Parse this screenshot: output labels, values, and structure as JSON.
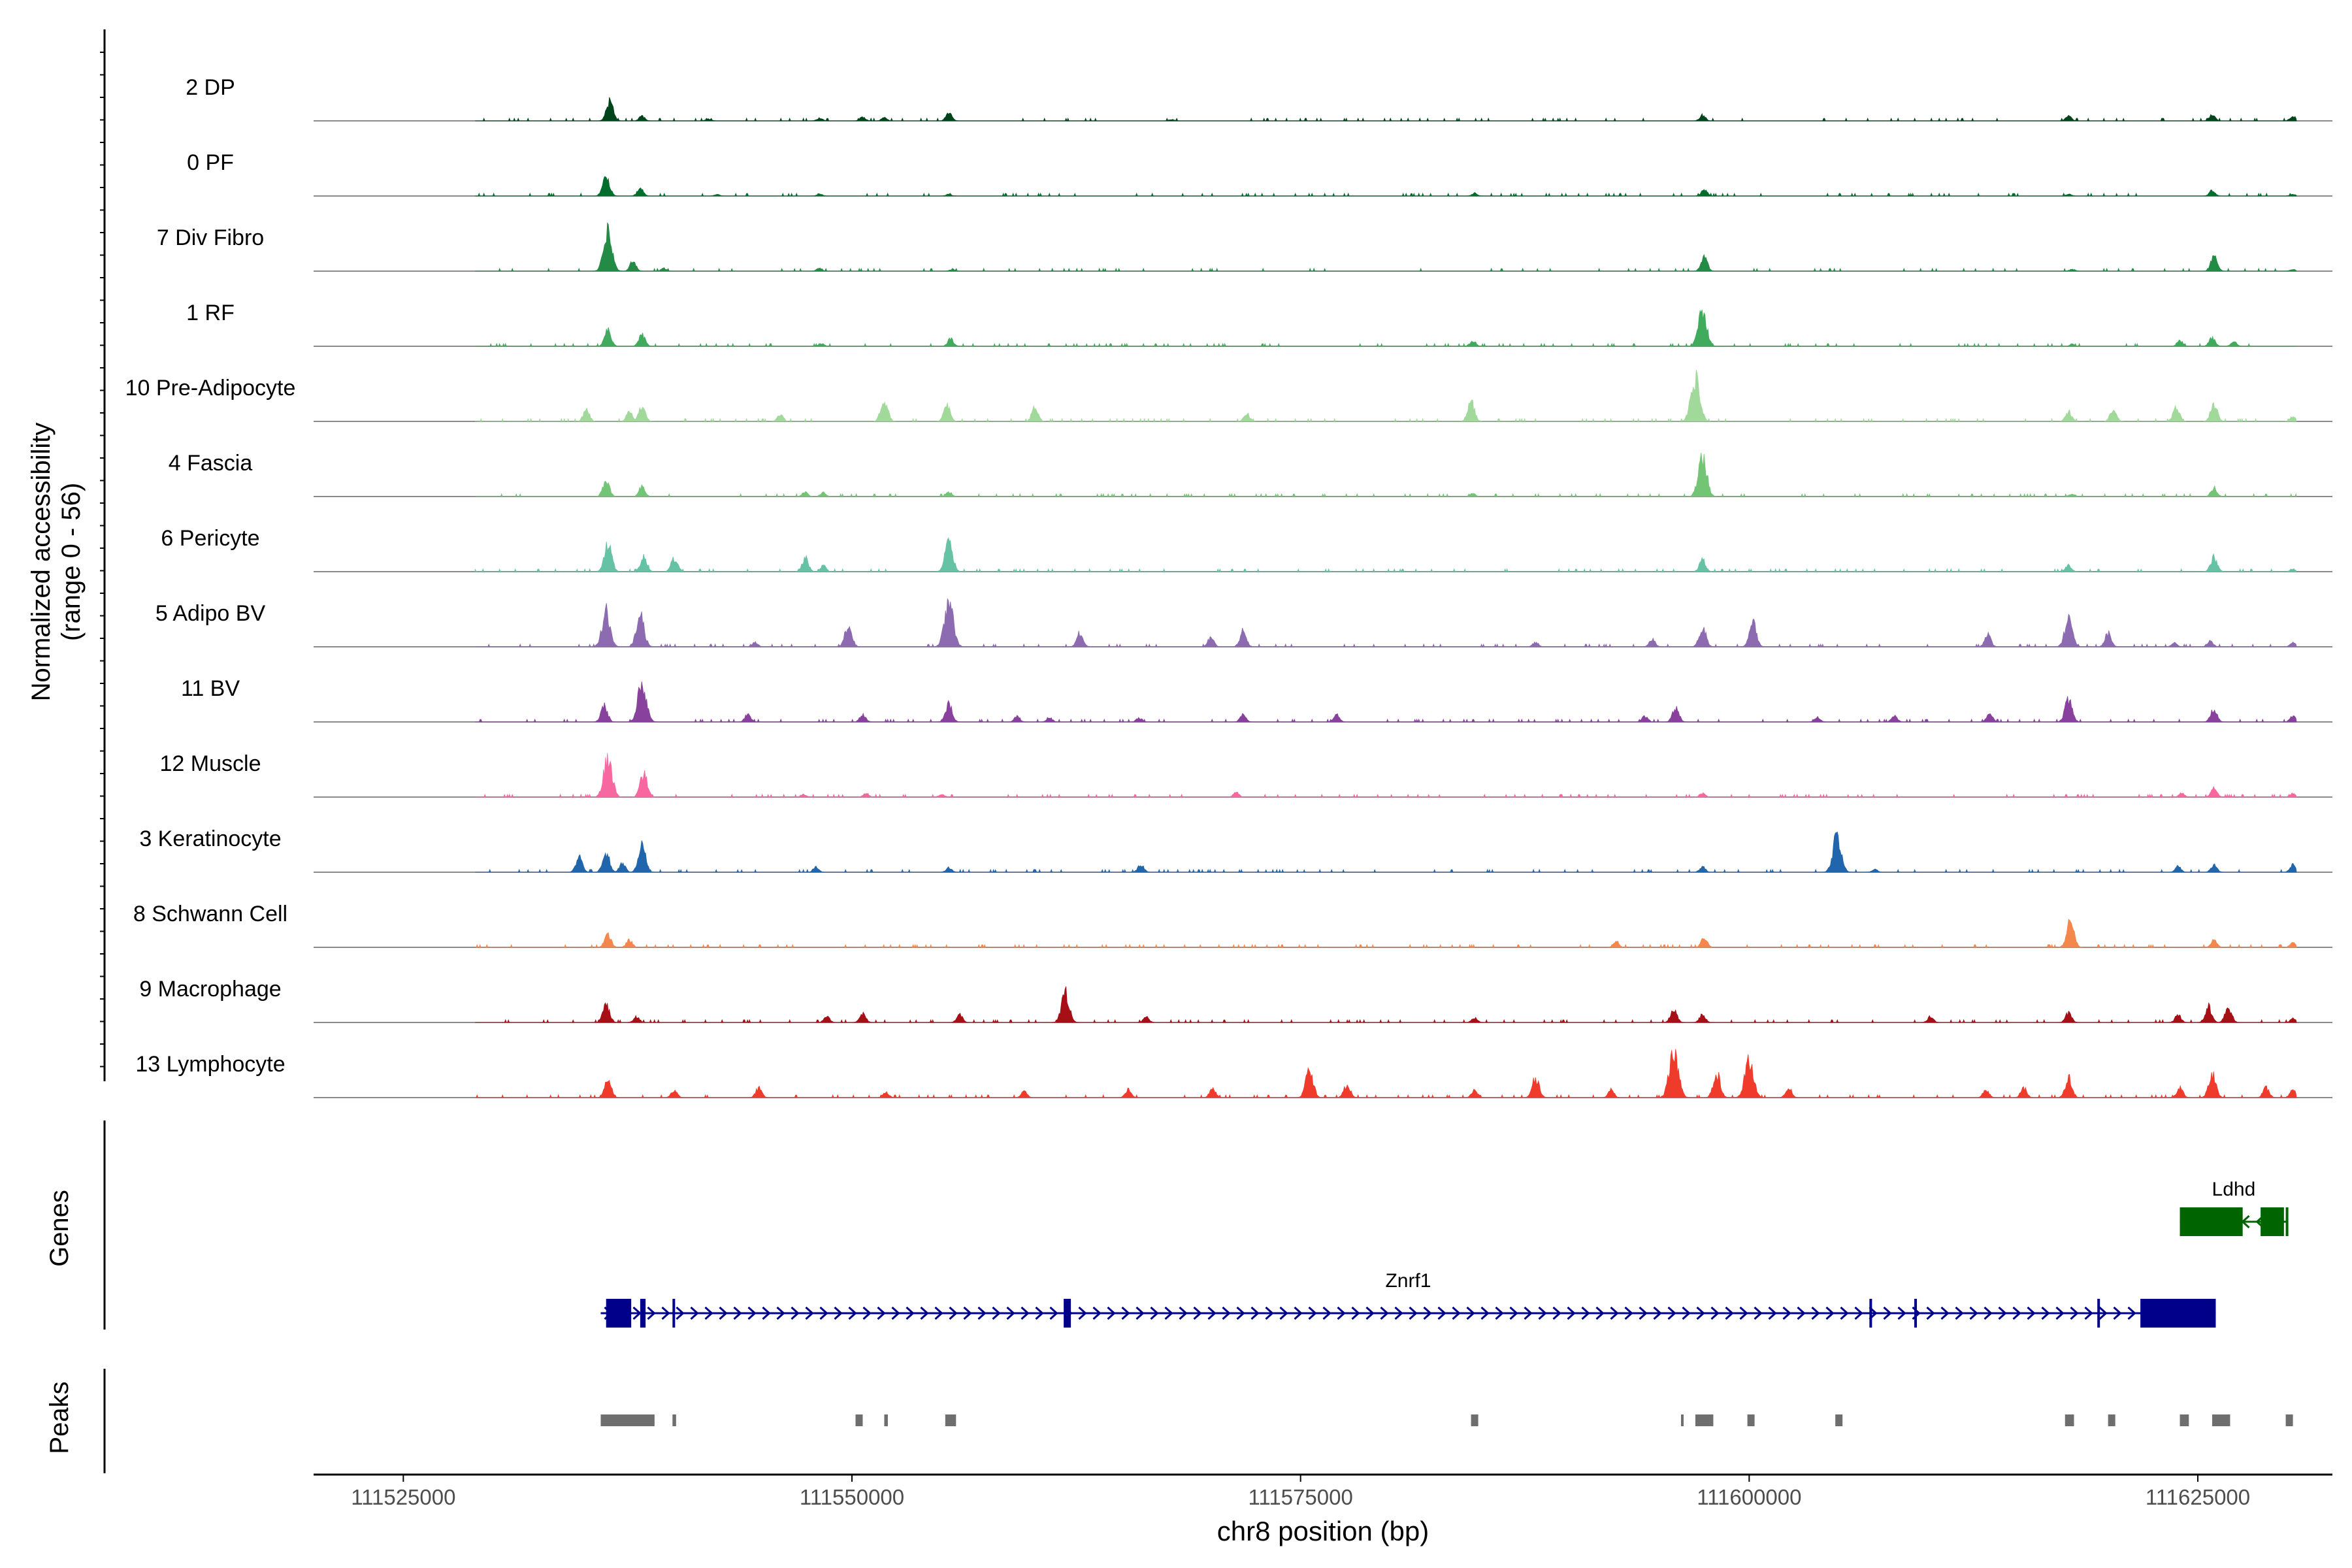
{
  "chart_data": {
    "type": "area",
    "title": "",
    "region": "chr8",
    "xlabel": "chr8 position (bp)",
    "xlim": [
      111520000,
      111632500
    ],
    "x_ticks": [
      111525000,
      111550000,
      111575000,
      111600000,
      111625000
    ],
    "x_tick_labels": [
      "111525000",
      "111550000",
      "111575000",
      "111600000",
      "111625000"
    ],
    "coverage_panel": {
      "ylabel": "Normalized accessibility",
      "ylabel_range": "(range 0 - 56)",
      "ylim": [
        0,
        56
      ],
      "tracks": [
        {
          "name": "2 DP",
          "color": "#00441b",
          "peaks": [
            [
              111536500,
              20
            ],
            [
              111538300,
              5
            ],
            [
              111542000,
              2
            ],
            [
              111548200,
              3
            ],
            [
              111550600,
              4
            ],
            [
              111551800,
              3
            ],
            [
              111555400,
              8
            ],
            [
              111567800,
              1.5
            ],
            [
              111597400,
              6
            ],
            [
              111617800,
              5
            ],
            [
              111625800,
              6
            ],
            [
              111630300,
              5
            ]
          ]
        },
        {
          "name": "0 PF",
          "color": "#006d2c",
          "peaks": [
            [
              111536300,
              20
            ],
            [
              111538200,
              8
            ],
            [
              111542500,
              1.5
            ],
            [
              111548200,
              2
            ],
            [
              111555400,
              2
            ],
            [
              111584700,
              3
            ],
            [
              111597500,
              7
            ],
            [
              111617800,
              2
            ],
            [
              111625800,
              6
            ],
            [
              111630300,
              2
            ]
          ]
        },
        {
          "name": "7 Div Fibro",
          "color": "#238b45",
          "peaks": [
            [
              111536400,
              40
            ],
            [
              111537800,
              10
            ],
            [
              111539500,
              3
            ],
            [
              111548200,
              3
            ],
            [
              111555600,
              2
            ],
            [
              111597500,
              14
            ],
            [
              111618000,
              2
            ],
            [
              111625900,
              16
            ],
            [
              111630300,
              2
            ]
          ]
        },
        {
          "name": "1 RF",
          "color": "#41ab5d",
          "peaks": [
            [
              111536400,
              16
            ],
            [
              111538300,
              12
            ],
            [
              111548300,
              3
            ],
            [
              111555500,
              8
            ],
            [
              111584600,
              6
            ],
            [
              111597400,
              38
            ],
            [
              111618000,
              2
            ],
            [
              111624000,
              6
            ],
            [
              111625800,
              9
            ],
            [
              111627000,
              5
            ]
          ]
        },
        {
          "name": "10 Pre-Adipocyte",
          "color": "#a1d99b",
          "peaks": [
            [
              111535200,
              12
            ],
            [
              111537600,
              10
            ],
            [
              111538300,
              16
            ],
            [
              111546000,
              8
            ],
            [
              111551800,
              22
            ],
            [
              111555300,
              16
            ],
            [
              111560200,
              14
            ],
            [
              111572000,
              8
            ],
            [
              111584500,
              20
            ],
            [
              111597000,
              45
            ],
            [
              111617800,
              10
            ],
            [
              111620300,
              13
            ],
            [
              111623800,
              14
            ],
            [
              111625900,
              18
            ],
            [
              111630300,
              5
            ]
          ]
        },
        {
          "name": "4 Fascia",
          "color": "#74c476",
          "peaks": [
            [
              111536300,
              16
            ],
            [
              111538300,
              10
            ],
            [
              111547400,
              5
            ],
            [
              111548400,
              4
            ],
            [
              111555400,
              5
            ],
            [
              111584600,
              3
            ],
            [
              111597400,
              40
            ],
            [
              111618000,
              3
            ],
            [
              111625900,
              9
            ]
          ]
        },
        {
          "name": "6 Pericyte",
          "color": "#66c2a4",
          "peaks": [
            [
              111536400,
              28
            ],
            [
              111538400,
              16
            ],
            [
              111540100,
              14
            ],
            [
              111547400,
              14
            ],
            [
              111548400,
              6
            ],
            [
              111555400,
              30
            ],
            [
              111597400,
              12
            ],
            [
              111617800,
              7
            ],
            [
              111625900,
              15
            ],
            [
              111630300,
              3
            ]
          ]
        },
        {
          "name": "5 Adipo BV",
          "color": "#8c6bb1",
          "peaks": [
            [
              111536300,
              36
            ],
            [
              111538200,
              32
            ],
            [
              111544600,
              5
            ],
            [
              111549800,
              22
            ],
            [
              111555400,
              46
            ],
            [
              111562700,
              14
            ],
            [
              111570000,
              10
            ],
            [
              111571800,
              16
            ],
            [
              111588100,
              5
            ],
            [
              111594600,
              8
            ],
            [
              111597400,
              20
            ],
            [
              111600200,
              24
            ],
            [
              111613300,
              12
            ],
            [
              111617800,
              30
            ],
            [
              111620000,
              14
            ],
            [
              111623700,
              4
            ],
            [
              111625700,
              6
            ],
            [
              111630300,
              4
            ]
          ]
        },
        {
          "name": "11 BV",
          "color": "#88419d",
          "peaks": [
            [
              111536200,
              16
            ],
            [
              111538300,
              40
            ],
            [
              111544200,
              8
            ],
            [
              111550600,
              8
            ],
            [
              111555400,
              18
            ],
            [
              111559200,
              6
            ],
            [
              111561000,
              5
            ],
            [
              111566000,
              4
            ],
            [
              111571800,
              8
            ],
            [
              111577000,
              8
            ],
            [
              111594200,
              6
            ],
            [
              111595900,
              15
            ],
            [
              111603800,
              5
            ],
            [
              111608100,
              6
            ],
            [
              111613400,
              8
            ],
            [
              111617800,
              24
            ],
            [
              111625900,
              14
            ],
            [
              111630300,
              6
            ]
          ]
        },
        {
          "name": "12 Muscle",
          "color": "#f768a1",
          "peaks": [
            [
              111536400,
              40
            ],
            [
              111538400,
              24
            ],
            [
              111547300,
              3
            ],
            [
              111550800,
              4
            ],
            [
              111555000,
              3
            ],
            [
              111571400,
              5
            ],
            [
              111597400,
              4
            ],
            [
              111624100,
              4
            ],
            [
              111625900,
              10
            ],
            [
              111630300,
              4
            ]
          ]
        },
        {
          "name": "3 Keratinocyte",
          "color": "#2166ac",
          "peaks": [
            [
              111534800,
              16
            ],
            [
              111536300,
              20
            ],
            [
              111537200,
              10
            ],
            [
              111538300,
              26
            ],
            [
              111548000,
              5
            ],
            [
              111555400,
              5
            ],
            [
              111566100,
              8
            ],
            [
              111597400,
              6
            ],
            [
              111604900,
              38
            ],
            [
              111607000,
              3
            ],
            [
              111623900,
              6
            ],
            [
              111625900,
              8
            ],
            [
              111630300,
              8
            ]
          ]
        },
        {
          "name": "8 Schwann Cell",
          "color": "#f4874b",
          "peaks": [
            [
              111536400,
              14
            ],
            [
              111537600,
              8
            ],
            [
              111592600,
              6
            ],
            [
              111597500,
              10
            ],
            [
              111617900,
              26
            ],
            [
              111625900,
              8
            ],
            [
              111630300,
              5
            ]
          ]
        },
        {
          "name": "9 Macrophage",
          "color": "#a50f15",
          "peaks": [
            [
              111536300,
              18
            ],
            [
              111538000,
              6
            ],
            [
              111548600,
              6
            ],
            [
              111550600,
              10
            ],
            [
              111556000,
              8
            ],
            [
              111561900,
              30
            ],
            [
              111566400,
              6
            ],
            [
              111584700,
              5
            ],
            [
              111595800,
              14
            ],
            [
              111597400,
              8
            ],
            [
              111610100,
              6
            ],
            [
              111617800,
              10
            ],
            [
              111623900,
              8
            ],
            [
              111625600,
              16
            ],
            [
              111626700,
              16
            ],
            [
              111630300,
              4
            ]
          ]
        },
        {
          "name": "13 Lymphocyte",
          "color": "#ef3b2c",
          "peaks": [
            [
              111536400,
              18
            ],
            [
              111540100,
              8
            ],
            [
              111544800,
              10
            ],
            [
              111551900,
              6
            ],
            [
              111559600,
              6
            ],
            [
              111565400,
              8
            ],
            [
              111570100,
              10
            ],
            [
              111575500,
              28
            ],
            [
              111577600,
              14
            ],
            [
              111584700,
              8
            ],
            [
              111588100,
              20
            ],
            [
              111592300,
              8
            ],
            [
              111595800,
              48
            ],
            [
              111598200,
              24
            ],
            [
              111600000,
              40
            ],
            [
              111602200,
              10
            ],
            [
              111613200,
              8
            ],
            [
              111615300,
              10
            ],
            [
              111617800,
              20
            ],
            [
              111624000,
              10
            ],
            [
              111625800,
              24
            ],
            [
              111628800,
              10
            ],
            [
              111630300,
              8
            ]
          ]
        }
      ]
    },
    "genes_panel": {
      "label": "Genes",
      "genes": [
        {
          "name": "Ldhd",
          "color": "#006400",
          "strand": "-",
          "start": 111624000,
          "end": 111630000,
          "exons": [
            [
              111624000,
              111627500
            ],
            [
              111628500,
              111629800
            ],
            [
              111629900,
              111630000
            ]
          ]
        },
        {
          "name": "Znrf1",
          "color": "#00008b",
          "strand": "+",
          "start": 111536000,
          "end": 111626000,
          "exons": [
            [
              111536300,
              111537700
            ],
            [
              111538200,
              111538500
            ],
            [
              111540000,
              111540100
            ],
            [
              111561800,
              111562200
            ],
            [
              111606700,
              111606800
            ],
            [
              111609200,
              111609300
            ],
            [
              111619400,
              111619500
            ],
            [
              111621800,
              111626000
            ]
          ]
        }
      ]
    },
    "peaks_panel": {
      "label": "Peaks",
      "color": "#6e6e6e",
      "regions": [
        [
          111536000,
          111539000
        ],
        [
          111540000,
          111540200
        ],
        [
          111550200,
          111550600
        ],
        [
          111551800,
          111552000
        ],
        [
          111555200,
          111555800
        ],
        [
          111584500,
          111584900
        ],
        [
          111596200,
          111596300
        ],
        [
          111597000,
          111598000
        ],
        [
          111599900,
          111600300
        ],
        [
          111604800,
          111605200
        ],
        [
          111617600,
          111618100
        ],
        [
          111620000,
          111620400
        ],
        [
          111624000,
          111624500
        ],
        [
          111625800,
          111626800
        ],
        [
          111629900,
          111630300
        ]
      ]
    }
  }
}
